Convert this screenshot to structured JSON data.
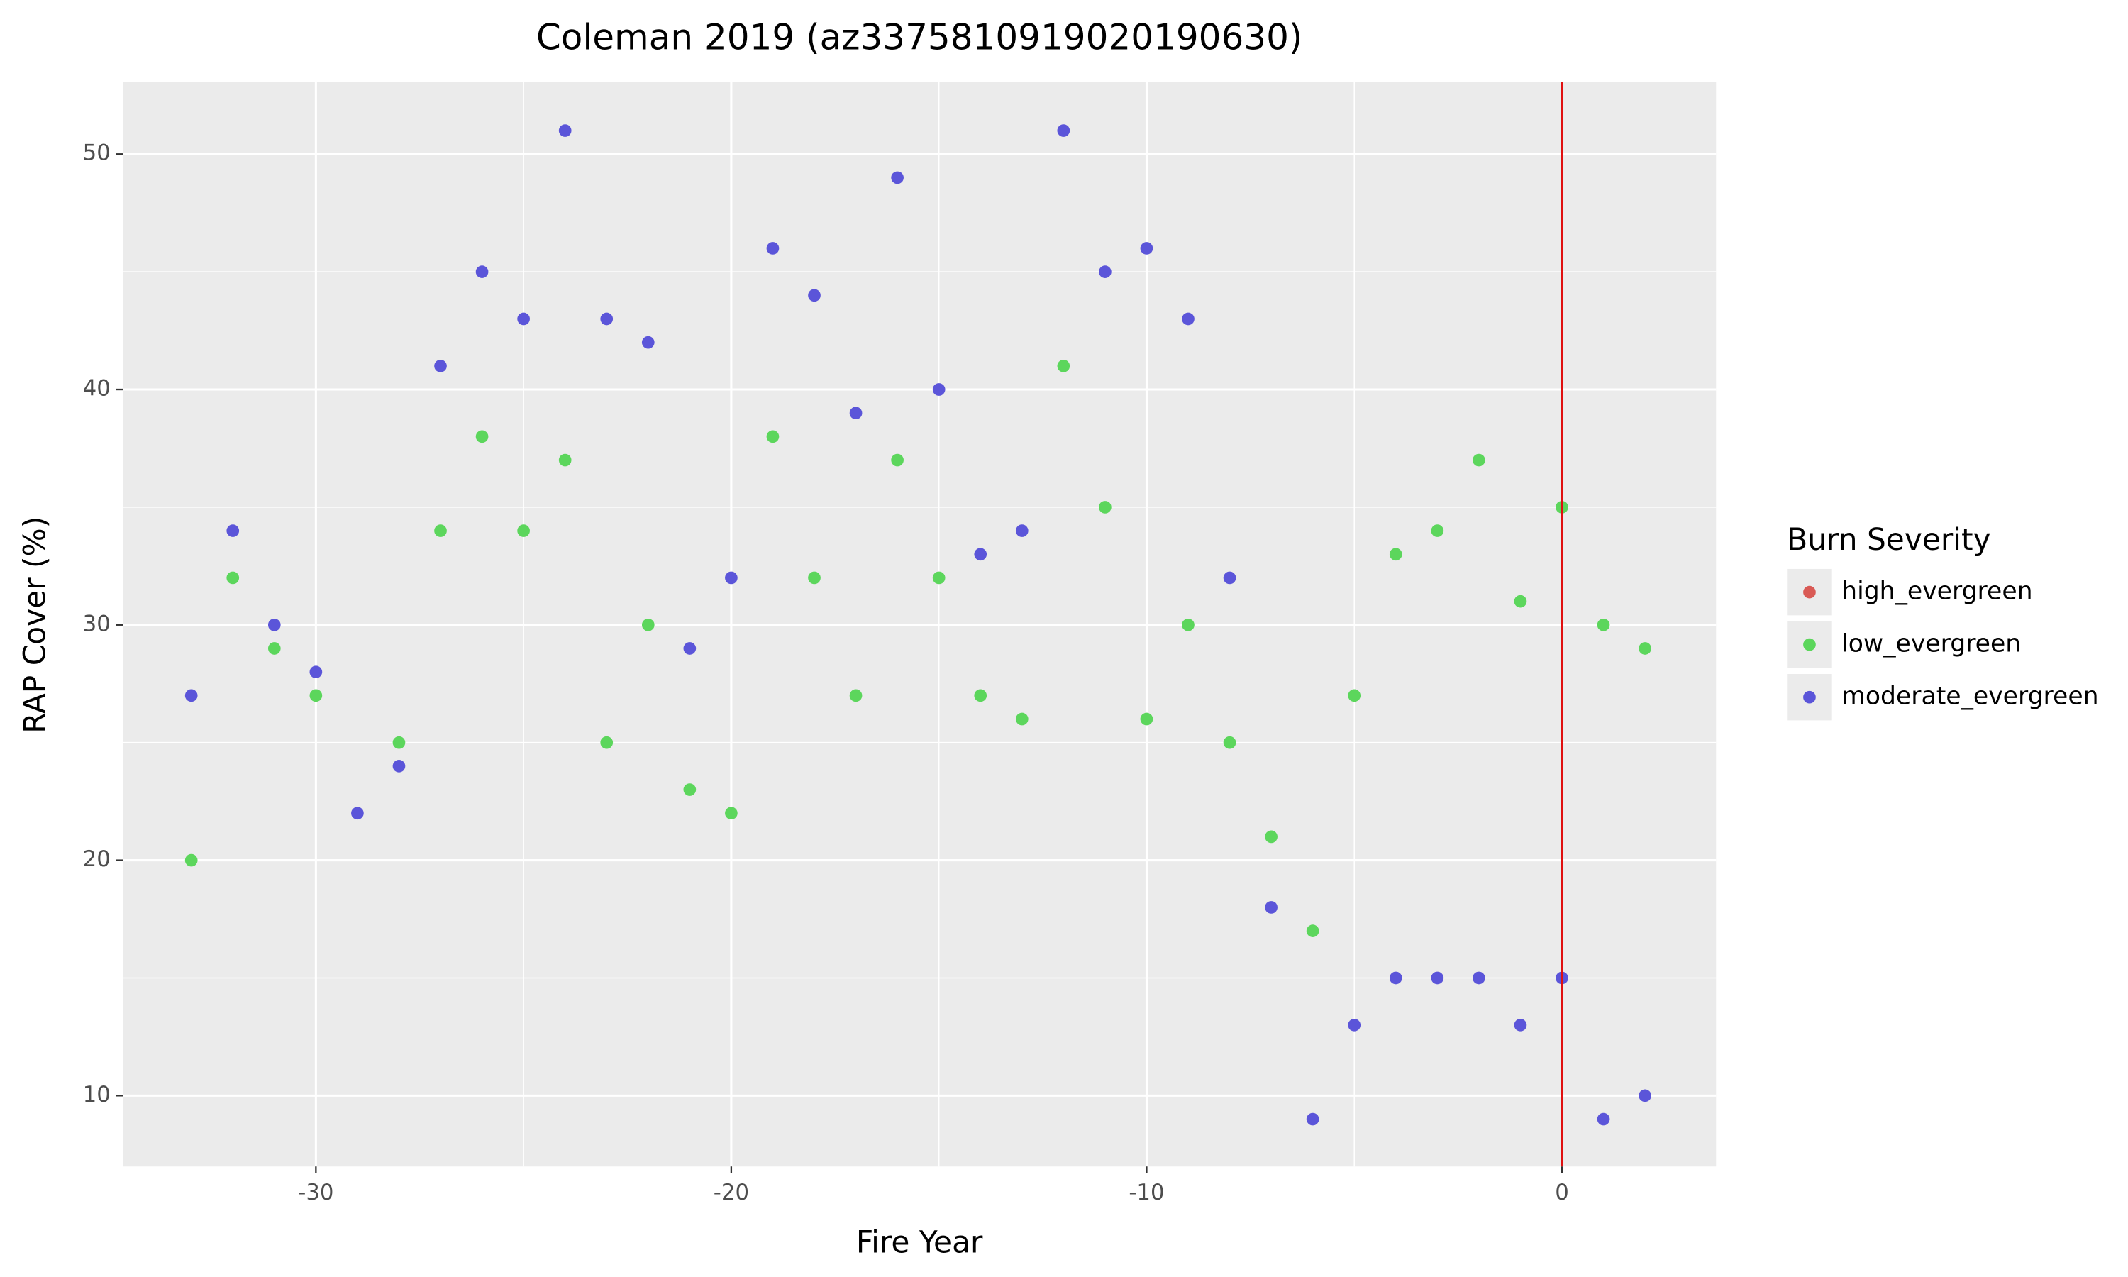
{
  "chart_data": {
    "type": "scatter",
    "title": "Coleman 2019 (az3375810919020190630)",
    "x_label": "Fire Year",
    "y_label": "RAP Cover (%)",
    "legend_title": "Burn Severity",
    "legend_position": "right",
    "grid": true,
    "xlim": [
      -34.65,
      3.71
    ],
    "ylim": [
      6.99,
      53.07
    ],
    "xticks": [
      -30,
      -20,
      -10,
      0
    ],
    "yticks": [
      10,
      20,
      30,
      40,
      50
    ],
    "x_minor_ticks": [
      -25,
      -15,
      -5
    ],
    "y_minor_ticks": [
      15,
      25,
      35,
      45
    ],
    "vline": {
      "x": 0,
      "color": "#e01010"
    },
    "series": [
      {
        "name": "high_evergreen",
        "color": "#d95a55",
        "x": [],
        "values": []
      },
      {
        "name": "low_evergreen",
        "color": "#5cd65c",
        "x": [
          -33,
          -32,
          -31,
          -30,
          -28,
          -27,
          -26,
          -25,
          -24,
          -23,
          -22,
          -21,
          -20,
          -19,
          -18,
          -17,
          -16,
          -15,
          -14,
          -13,
          -12,
          -11,
          -10,
          -9,
          -8,
          -7,
          -6,
          -5,
          -4,
          -3,
          -2,
          -1,
          0,
          1,
          2
        ],
        "values": [
          20,
          32,
          29,
          27,
          25,
          34,
          38,
          34,
          37,
          25,
          30,
          23,
          22,
          38,
          32,
          27,
          37,
          32,
          27,
          26,
          41,
          35,
          26,
          30,
          25,
          21,
          17,
          27,
          33,
          34,
          37,
          31,
          35,
          30,
          29
        ]
      },
      {
        "name": "moderate_evergreen",
        "color": "#5b55d9",
        "x": [
          -33,
          -32,
          -31,
          -30,
          -29,
          -28,
          -27,
          -26,
          -25,
          -24,
          -23,
          -22,
          -21,
          -20,
          -19,
          -18,
          -17,
          -16,
          -15,
          -14,
          -13,
          -12,
          -11,
          -10,
          -9,
          -8,
          -7,
          -6,
          -5,
          -4,
          -3,
          -2,
          -1,
          0,
          1,
          2
        ],
        "values": [
          27,
          34,
          30,
          28,
          22,
          24,
          41,
          45,
          43,
          51,
          43,
          42,
          29,
          32,
          46,
          44,
          39,
          49,
          40,
          33,
          34,
          51,
          45,
          46,
          43,
          32,
          18,
          9,
          13,
          15,
          15,
          15,
          13,
          15,
          9,
          10
        ]
      }
    ]
  }
}
